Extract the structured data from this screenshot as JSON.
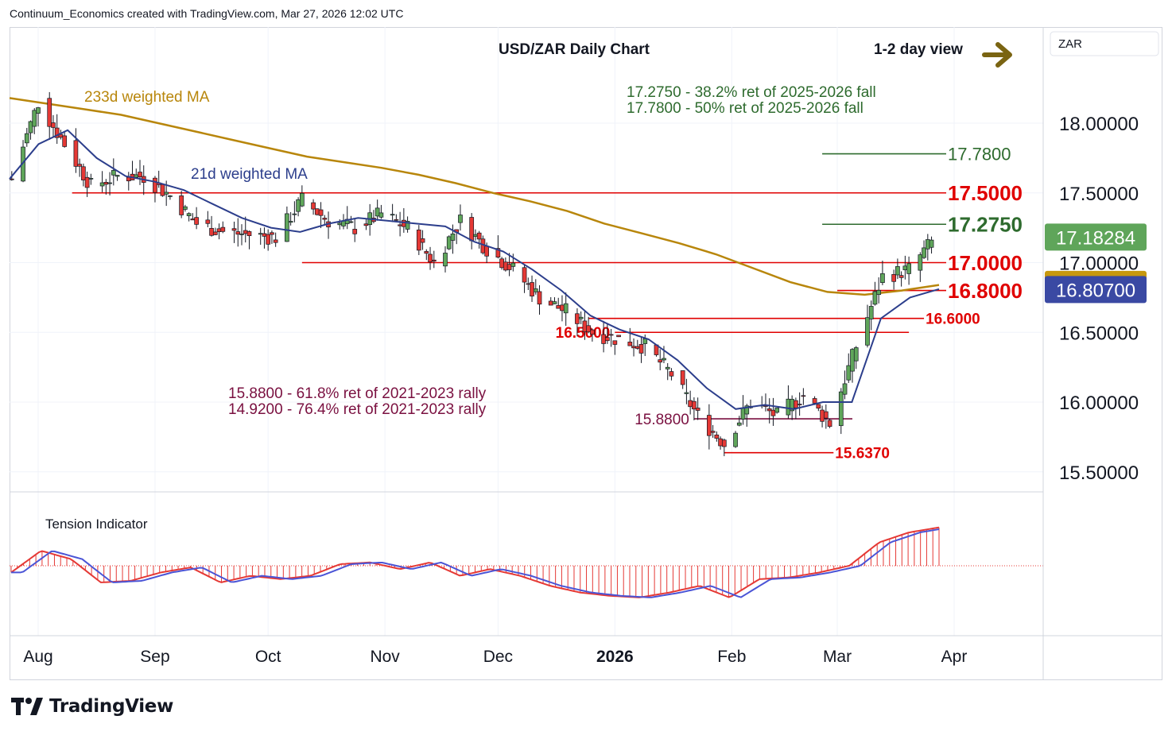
{
  "header": {
    "text": "Continuum_Economics created with TradingView.com, Mar 27, 2026 12:02 UTC"
  },
  "chart_data": {
    "type": "candlestick",
    "title": "USD/ZAR Daily Chart",
    "view_label": "1-2 day view",
    "currency_label": "ZAR",
    "y_axis": {
      "range": [
        15.35,
        18.7
      ],
      "ticks": [
        "18.00000",
        "17.50000",
        "17.00000",
        "16.50000",
        "16.00000",
        "15.50000"
      ],
      "tick_values": [
        18.0,
        17.5,
        17.0,
        16.5,
        16.0,
        15.5
      ]
    },
    "x_axis": {
      "ticks": [
        "Aug",
        "Sep",
        "Oct",
        "Nov",
        "Dec",
        "2026",
        "Feb",
        "Mar",
        "Apr"
      ],
      "tick_dates": [
        "2025-08-01",
        "2025-09-01",
        "2025-10-01",
        "2025-11-01",
        "2025-12-01",
        "2026-01-01",
        "2026-02-01",
        "2026-03-01",
        "2026-04-01"
      ]
    },
    "price_badges": [
      {
        "value": "17.18284",
        "color": "#5fa55a",
        "text_color": "#ffffff"
      },
      {
        "value": "16.84387",
        "color": "#c7980e",
        "text_color": "#ffffff"
      },
      {
        "value": "16.80700",
        "color": "#3a49a3",
        "text_color": "#ffffff"
      }
    ],
    "moving_averages": [
      {
        "name": "233d weighted MA",
        "color": "#b8860b"
      },
      {
        "name": "21d weighted MA",
        "color": "#2c3e8c"
      }
    ],
    "annotations": {
      "fib_resistance": [
        "17.2750 - 38.2% ret of 2025-2026 fall",
        "17.7800 - 50% ret of 2025-2026 fall"
      ],
      "fib_support": [
        "15.8800 - 61.8% ret of 2021-2023 rally",
        "14.9200 - 76.4% ret of 2021-2023 rally"
      ]
    },
    "levels": [
      {
        "value": 17.78,
        "label": "17.7800",
        "color": "#2e6b2e",
        "from": "2026-02-25",
        "to": "2026-03-31"
      },
      {
        "value": 17.5,
        "label": "17.5000",
        "color": "#e00000",
        "from": "2025-08-10",
        "to": "2026-03-31"
      },
      {
        "value": 17.275,
        "label": "17.2750",
        "color": "#2e6b2e",
        "from": "2026-02-25",
        "to": "2026-03-31"
      },
      {
        "value": 17.0,
        "label": "17.0000",
        "color": "#e00000",
        "from": "2025-10-10",
        "to": "2026-03-31"
      },
      {
        "value": 16.8,
        "label": "16.8000",
        "color": "#e00000",
        "from": "2026-03-01",
        "to": "2026-03-31"
      },
      {
        "value": 16.6,
        "label": "16.6000",
        "color": "#e00000",
        "from": "2025-12-25",
        "to": "2026-03-24"
      },
      {
        "value": 16.5,
        "label": "16.5000",
        "color": "#e00000",
        "from": "2026-01-01",
        "to": "2026-03-20"
      },
      {
        "value": 15.88,
        "label": "15.8800",
        "color": "#7a1040",
        "from": "2026-01-22",
        "to": "2026-03-05"
      },
      {
        "value": 15.637,
        "label": "15.6370",
        "color": "#e00000",
        "from": "2026-01-30",
        "to": "2026-02-28"
      }
    ],
    "close_series": {
      "dates": [
        "2025-07-25",
        "2025-08-01",
        "2025-08-08",
        "2025-08-15",
        "2025-08-22",
        "2025-08-29",
        "2025-09-05",
        "2025-09-12",
        "2025-09-19",
        "2025-09-26",
        "2025-10-03",
        "2025-10-10",
        "2025-10-17",
        "2025-10-24",
        "2025-10-31",
        "2025-11-07",
        "2025-11-14",
        "2025-11-21",
        "2025-11-28",
        "2025-12-05",
        "2025-12-12",
        "2025-12-19",
        "2025-12-26",
        "2026-01-02",
        "2026-01-09",
        "2026-01-16",
        "2026-01-23",
        "2026-01-30",
        "2026-02-06",
        "2026-02-13",
        "2026-02-20",
        "2026-02-27",
        "2026-03-06",
        "2026-03-13",
        "2026-03-20",
        "2026-03-27"
      ],
      "values": [
        17.6,
        18.15,
        17.85,
        17.55,
        17.62,
        17.62,
        17.48,
        17.28,
        17.22,
        17.2,
        17.18,
        17.45,
        17.3,
        17.25,
        17.35,
        17.25,
        17.0,
        17.3,
        17.1,
        16.95,
        16.75,
        16.65,
        16.5,
        16.45,
        16.4,
        16.2,
        15.9,
        15.7,
        16.0,
        15.9,
        16.05,
        15.85,
        16.4,
        16.9,
        16.95,
        17.18
      ]
    },
    "ma233_series": [
      18.18,
      18.14,
      18.1,
      18.06,
      18.0,
      17.94,
      17.88,
      17.82,
      17.76,
      17.72,
      17.68,
      17.63,
      17.57,
      17.5,
      17.44,
      17.37,
      17.28,
      17.21,
      17.14,
      17.06,
      16.96,
      16.86,
      16.79,
      16.77,
      16.8,
      16.84
    ],
    "ma21_series": [
      17.6,
      17.85,
      17.95,
      17.75,
      17.62,
      17.58,
      17.52,
      17.42,
      17.32,
      17.25,
      17.22,
      17.28,
      17.32,
      17.3,
      17.28,
      17.26,
      17.15,
      17.08,
      16.95,
      16.8,
      16.62,
      16.52,
      16.45,
      16.3,
      16.1,
      15.95,
      15.98,
      15.95,
      16.0,
      16.0,
      16.6,
      16.75,
      16.81
    ],
    "tension_indicator": {
      "label": "Tension Indicator",
      "values": [
        -0.2,
        0.45,
        0.2,
        -0.5,
        -0.45,
        -0.2,
        -0.05,
        -0.5,
        -0.3,
        -0.4,
        -0.3,
        0.05,
        0.1,
        -0.1,
        0.1,
        -0.3,
        -0.1,
        -0.3,
        -0.6,
        -0.8,
        -0.9,
        -0.95,
        -0.8,
        -0.6,
        -0.95,
        -0.4,
        -0.35,
        -0.2,
        0.0,
        0.7,
        1.0,
        1.15
      ]
    }
  },
  "brand": {
    "name": "TradingView"
  }
}
